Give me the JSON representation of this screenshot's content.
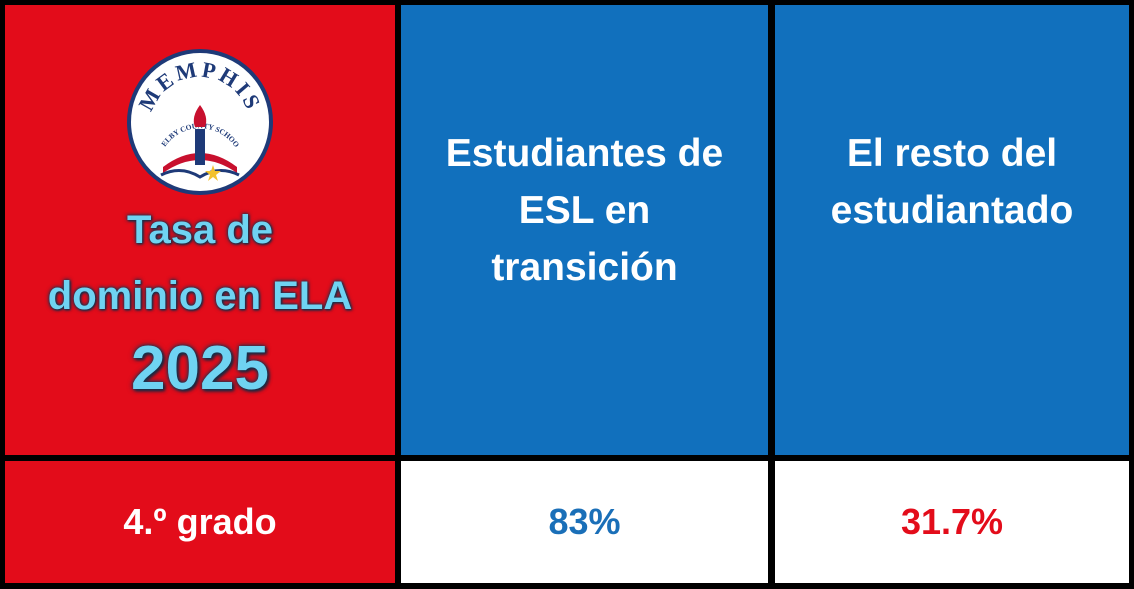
{
  "logo": {
    "name": "MEMPHIS",
    "subtitle": "SHELBY COUNTY SCHOOLS"
  },
  "title": {
    "lines": [
      "Tasa de",
      "dominio en ELA"
    ],
    "year": "2025"
  },
  "columns": [
    {
      "lines": [
        "Estudiantes de",
        "ESL en",
        "transición"
      ]
    },
    {
      "lines": [
        "El resto del",
        "estudiantado"
      ]
    }
  ],
  "row": {
    "label": "4.º grado",
    "values": [
      "83%",
      "31.7%"
    ]
  }
}
